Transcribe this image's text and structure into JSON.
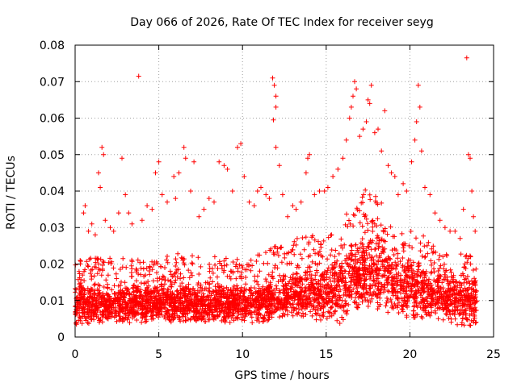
{
  "chart_data": {
    "type": "scatter",
    "title": "Day 066 of 2026, Rate Of TEC Index for receiver seyg",
    "xlabel": "GPS time / hours",
    "ylabel": "ROTI / TECUs",
    "xlim": [
      0,
      25
    ],
    "ylim": [
      0,
      0.08
    ],
    "x_ticks": [
      "0",
      "5",
      "10",
      "15",
      "20",
      "25"
    ],
    "y_ticks": [
      "0",
      "0.01",
      "0.02",
      "0.03",
      "0.04",
      "0.05",
      "0.06",
      "0.07",
      "0.08"
    ],
    "grid": true,
    "marker": "+",
    "color": "#ff0000",
    "series": [
      {
        "points": [
          [
            0.3,
            0.021
          ],
          [
            0.5,
            0.034
          ],
          [
            0.6,
            0.036
          ],
          [
            0.8,
            0.029
          ],
          [
            1.0,
            0.031
          ],
          [
            1.2,
            0.028
          ],
          [
            1.4,
            0.045
          ],
          [
            1.5,
            0.041
          ],
          [
            1.6,
            0.052
          ],
          [
            1.7,
            0.05
          ],
          [
            1.8,
            0.032
          ],
          [
            2.1,
            0.03
          ],
          [
            2.3,
            0.029
          ],
          [
            2.6,
            0.034
          ],
          [
            2.8,
            0.049
          ],
          [
            3.0,
            0.039
          ],
          [
            3.2,
            0.034
          ],
          [
            3.4,
            0.031
          ],
          [
            3.8,
            0.0715
          ],
          [
            4.0,
            0.032
          ],
          [
            4.3,
            0.036
          ],
          [
            4.6,
            0.035
          ],
          [
            4.8,
            0.045
          ],
          [
            5.0,
            0.048
          ],
          [
            5.2,
            0.039
          ],
          [
            5.5,
            0.037
          ],
          [
            5.9,
            0.044
          ],
          [
            6.0,
            0.038
          ],
          [
            6.2,
            0.045
          ],
          [
            6.5,
            0.052
          ],
          [
            6.6,
            0.049
          ],
          [
            6.9,
            0.04
          ],
          [
            7.1,
            0.048
          ],
          [
            7.4,
            0.033
          ],
          [
            7.7,
            0.035
          ],
          [
            8.0,
            0.038
          ],
          [
            8.3,
            0.037
          ],
          [
            8.6,
            0.048
          ],
          [
            8.9,
            0.047
          ],
          [
            9.1,
            0.046
          ],
          [
            9.4,
            0.04
          ],
          [
            9.7,
            0.052
          ],
          [
            9.9,
            0.053
          ],
          [
            10.1,
            0.044
          ],
          [
            10.4,
            0.037
          ],
          [
            10.7,
            0.036
          ],
          [
            10.9,
            0.04
          ],
          [
            11.1,
            0.041
          ],
          [
            11.4,
            0.039
          ],
          [
            11.6,
            0.038
          ],
          [
            11.8,
            0.071
          ],
          [
            11.9,
            0.069
          ],
          [
            12.0,
            0.066
          ],
          [
            12.0,
            0.063
          ],
          [
            11.85,
            0.0595
          ],
          [
            12.0,
            0.052
          ],
          [
            12.2,
            0.047
          ],
          [
            12.4,
            0.039
          ],
          [
            12.7,
            0.033
          ],
          [
            13.0,
            0.036
          ],
          [
            13.2,
            0.035
          ],
          [
            13.5,
            0.037
          ],
          [
            13.8,
            0.045
          ],
          [
            13.9,
            0.049
          ],
          [
            14.0,
            0.05
          ],
          [
            14.3,
            0.039
          ],
          [
            14.6,
            0.04
          ],
          [
            14.9,
            0.04
          ],
          [
            15.1,
            0.041
          ],
          [
            15.4,
            0.044
          ],
          [
            15.7,
            0.046
          ],
          [
            16.0,
            0.049
          ],
          [
            16.2,
            0.054
          ],
          [
            16.4,
            0.06
          ],
          [
            16.5,
            0.063
          ],
          [
            16.6,
            0.066
          ],
          [
            16.7,
            0.07
          ],
          [
            16.8,
            0.068
          ],
          [
            17.0,
            0.055
          ],
          [
            17.2,
            0.057
          ],
          [
            17.4,
            0.059
          ],
          [
            17.5,
            0.065
          ],
          [
            17.6,
            0.064
          ],
          [
            17.7,
            0.069
          ],
          [
            17.9,
            0.056
          ],
          [
            18.1,
            0.057
          ],
          [
            18.3,
            0.051
          ],
          [
            18.5,
            0.062
          ],
          [
            18.7,
            0.047
          ],
          [
            18.9,
            0.045
          ],
          [
            19.1,
            0.044
          ],
          [
            19.3,
            0.039
          ],
          [
            19.6,
            0.042
          ],
          [
            19.8,
            0.04
          ],
          [
            20.1,
            0.048
          ],
          [
            20.3,
            0.054
          ],
          [
            20.4,
            0.059
          ],
          [
            20.5,
            0.069
          ],
          [
            20.6,
            0.063
          ],
          [
            20.7,
            0.051
          ],
          [
            20.9,
            0.041
          ],
          [
            21.2,
            0.039
          ],
          [
            21.5,
            0.034
          ],
          [
            21.8,
            0.032
          ],
          [
            22.1,
            0.03
          ],
          [
            22.4,
            0.029
          ],
          [
            22.7,
            0.029
          ],
          [
            23.0,
            0.027
          ],
          [
            23.2,
            0.035
          ],
          [
            23.4,
            0.0765
          ],
          [
            23.5,
            0.05
          ],
          [
            23.6,
            0.049
          ],
          [
            23.7,
            0.04
          ],
          [
            23.8,
            0.033
          ],
          [
            23.9,
            0.029
          ]
        ]
      }
    ],
    "density_profile": {
      "x_hours": [
        0,
        2,
        4,
        6,
        8,
        10,
        12,
        13,
        14,
        15,
        16,
        16.5,
        17,
        17.5,
        18,
        18.5,
        19,
        20,
        21,
        22,
        23,
        24
      ],
      "y_upper": [
        0.022,
        0.022,
        0.021,
        0.023,
        0.022,
        0.022,
        0.025,
        0.027,
        0.028,
        0.027,
        0.032,
        0.036,
        0.038,
        0.042,
        0.04,
        0.035,
        0.032,
        0.031,
        0.027,
        0.024,
        0.023,
        0.022
      ],
      "y_lower": [
        0.003,
        0.004,
        0.004,
        0.004,
        0.004,
        0.004,
        0.004,
        0.005,
        0.005,
        0.004,
        0.004,
        0.007,
        0.008,
        0.008,
        0.008,
        0.007,
        0.006,
        0.005,
        0.005,
        0.004,
        0.003,
        0.003
      ],
      "y_center": [
        0.009,
        0.009,
        0.009,
        0.009,
        0.009,
        0.009,
        0.01,
        0.011,
        0.012,
        0.012,
        0.014,
        0.016,
        0.017,
        0.018,
        0.018,
        0.017,
        0.015,
        0.014,
        0.012,
        0.011,
        0.01,
        0.01
      ]
    }
  }
}
